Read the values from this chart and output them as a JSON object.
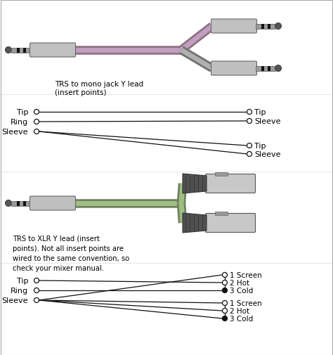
{
  "bg_color": "#ffffff",
  "section1_label": "TRS to mono jack Y lead\n(insert points)",
  "section2_label": "TRS to XLR Y lead (insert\npoints). Not all insert points are\nwired to the same convention, so\ncheck your mixer manual.",
  "wiring1_left": [
    "Tip",
    "Ring",
    "Sleeve"
  ],
  "wiring1_right_top": [
    "Tip",
    "Sleeve"
  ],
  "wiring1_right_bot": [
    "Tip",
    "Sleeve"
  ],
  "wiring2_left": [
    "Tip",
    "Ring",
    "Sleeve"
  ],
  "wiring2_right_top": [
    "1 Screen",
    "2 Hot",
    "3 Cold"
  ],
  "wiring2_right_bot": [
    "1 Screen",
    "2 Hot",
    "3 Cold"
  ],
  "gray_light": "#c0c0c0",
  "gray_body": "#b0b0b0",
  "gray_shaft": "#9a9a9a",
  "gray_dark": "#555555",
  "black": "#111111",
  "purple_hi": "#c0a0c0",
  "purple_lo": "#907080",
  "green_hi": "#a0c080",
  "green_lo": "#708060",
  "line_color": "#111111",
  "xlr_body": "#c8c8c8",
  "xlr_cone": "#505050",
  "xlr_cone_light": "#686868"
}
